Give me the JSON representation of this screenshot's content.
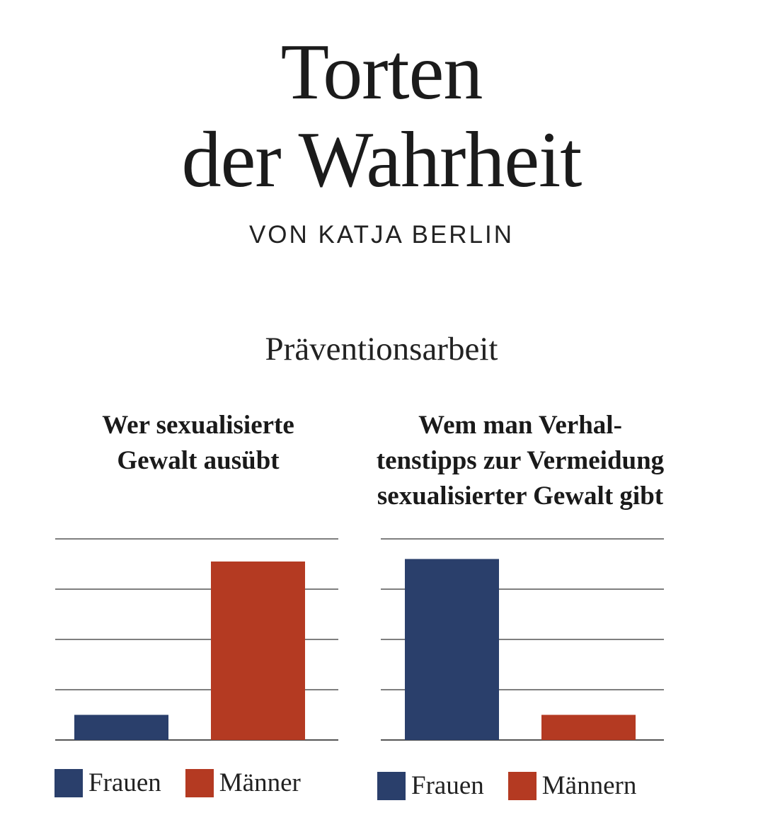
{
  "header": {
    "title_line1": "Torten",
    "title_line2": "der Wahrheit",
    "byline": "VON KATJA BERLIN",
    "subtitle": "Präventionsarbeit"
  },
  "colors": {
    "frauen": "#2a3f6b",
    "maenner": "#b43a22",
    "grid": "#555555"
  },
  "chart_data": [
    {
      "type": "bar",
      "title_lines": [
        "Wer sexualisierte",
        "Gewalt ausübt"
      ],
      "categories": [
        "Frauen",
        "Männer"
      ],
      "values": [
        0.5,
        3.55
      ],
      "ylim": [
        0,
        4
      ],
      "grid": true,
      "legend": [
        "Frauen",
        "Männer"
      ],
      "legend_position": "bottom"
    },
    {
      "type": "bar",
      "title_lines": [
        "Wem man Verhal-",
        "tenstipps zur Vermeidung",
        "sexualisierter Gewalt gibt"
      ],
      "categories": [
        "Frauen",
        "Männern"
      ],
      "values": [
        3.6,
        0.5
      ],
      "ylim": [
        0,
        4
      ],
      "grid": true,
      "legend": [
        "Frauen",
        "Männern"
      ],
      "legend_position": "bottom"
    }
  ]
}
